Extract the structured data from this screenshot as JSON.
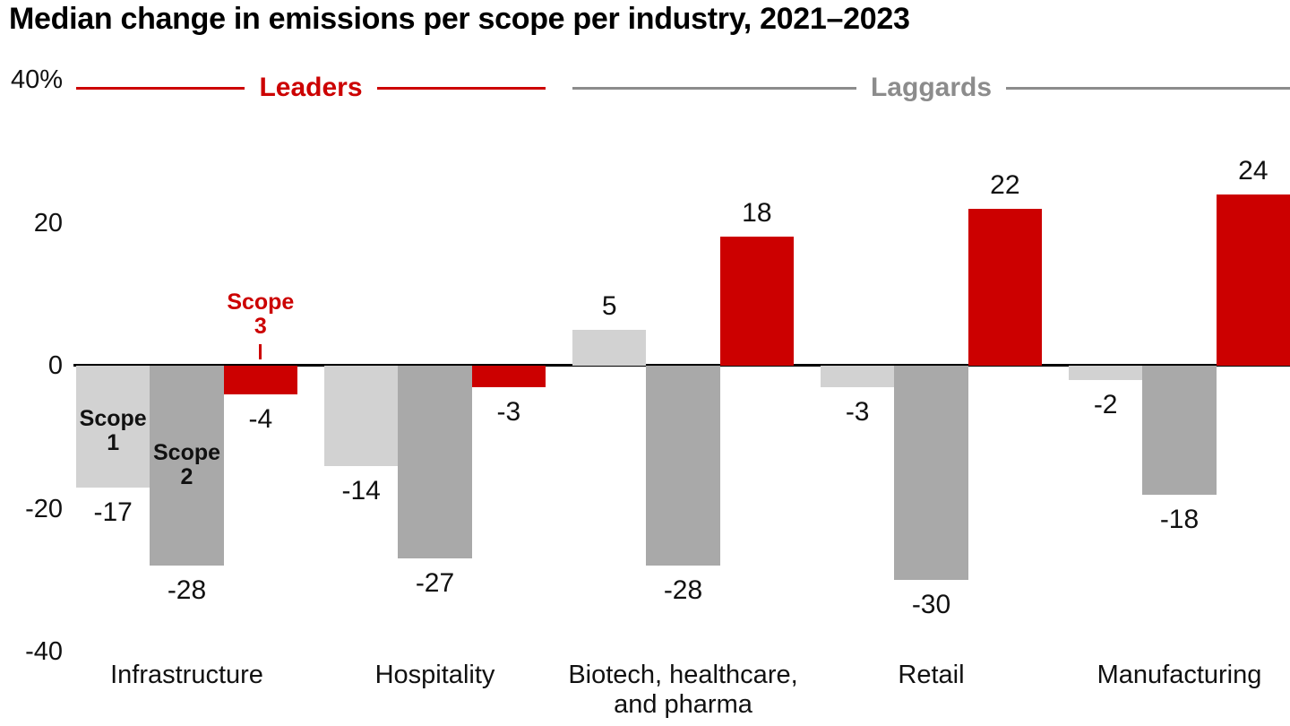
{
  "title": "Median change in emissions per scope per industry, 2021–2023",
  "colors": {
    "scope1_bar": "#d2d2d2",
    "scope2_bar": "#a9a9a9",
    "scope3_bar": "#cc0000",
    "leaders": "#cc0000",
    "laggards": "#8c8c8c",
    "axis": "#000000",
    "text": "#111111"
  },
  "sections": [
    {
      "id": "leaders",
      "label": "Leaders",
      "color": "#cc0000",
      "category_span": [
        0,
        1
      ]
    },
    {
      "id": "laggards",
      "label": "Laggards",
      "color": "#8c8c8c",
      "category_span": [
        2,
        4
      ]
    }
  ],
  "chart_data": {
    "type": "bar",
    "title": "Median change in emissions per scope per industry, 2021–2023",
    "categories": [
      "Infrastructure",
      "Hospitality",
      "Biotech, healthcare, and pharma",
      "Retail",
      "Manufacturing"
    ],
    "series": [
      {
        "name": "Scope 1",
        "color": "#d2d2d2",
        "values": [
          -17,
          -14,
          5,
          -3,
          -2
        ]
      },
      {
        "name": "Scope 2",
        "color": "#a9a9a9",
        "values": [
          -28,
          -27,
          -28,
          -30,
          -18
        ]
      },
      {
        "name": "Scope 3",
        "color": "#cc0000",
        "values": [
          -4,
          -3,
          18,
          22,
          24
        ]
      }
    ],
    "ylabel": "",
    "xlabel": "",
    "ylim": [
      -40,
      40
    ],
    "grid": false,
    "legend_position": "annotations-on-first-group",
    "y_ticks": [
      {
        "value": 40,
        "label": "40%"
      },
      {
        "value": 20,
        "label": "20"
      },
      {
        "value": 0,
        "label": "0"
      },
      {
        "value": -20,
        "label": "-20"
      },
      {
        "value": -40,
        "label": "-40"
      }
    ],
    "annotations": [
      {
        "text": "Scope 1",
        "group": 0,
        "bar": 0,
        "placement": "inside",
        "color": "#111111"
      },
      {
        "text": "Scope 2",
        "group": 0,
        "bar": 1,
        "placement": "inside",
        "color": "#111111"
      },
      {
        "text": "Scope 3",
        "group": 0,
        "bar": 2,
        "placement": "above-with-tick",
        "color": "#cc0000"
      }
    ]
  }
}
